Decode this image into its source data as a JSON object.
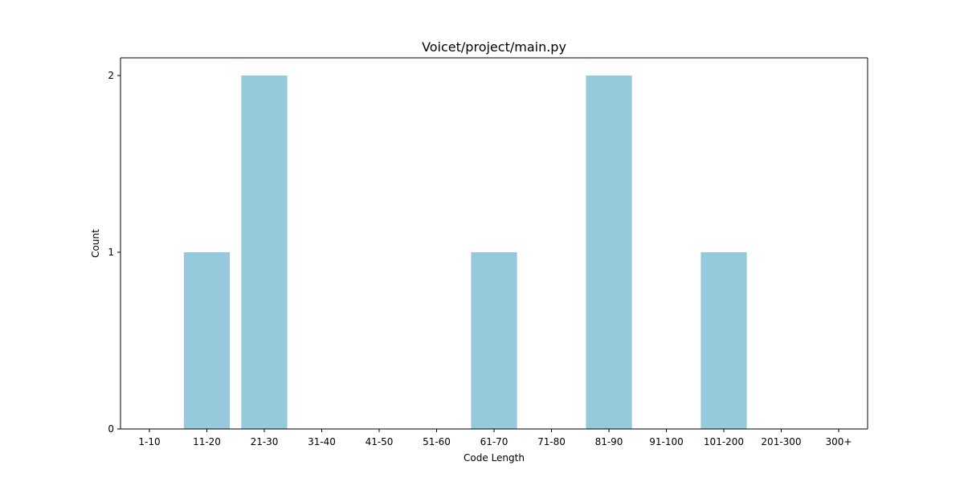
{
  "chart_data": {
    "type": "bar",
    "title": "Voicet/project/main.py",
    "xlabel": "Code Length",
    "ylabel": "Count",
    "categories": [
      "1-10",
      "11-20",
      "21-30",
      "31-40",
      "41-50",
      "51-60",
      "61-70",
      "71-80",
      "81-90",
      "91-100",
      "101-200",
      "201-300",
      "300+"
    ],
    "values": [
      0,
      1,
      2,
      0,
      0,
      0,
      1,
      0,
      2,
      0,
      1,
      0,
      0
    ],
    "yticks": [
      0,
      1,
      2
    ],
    "ylim": [
      0,
      2.1
    ],
    "grid": false,
    "bar_color": "#96c9dc"
  }
}
